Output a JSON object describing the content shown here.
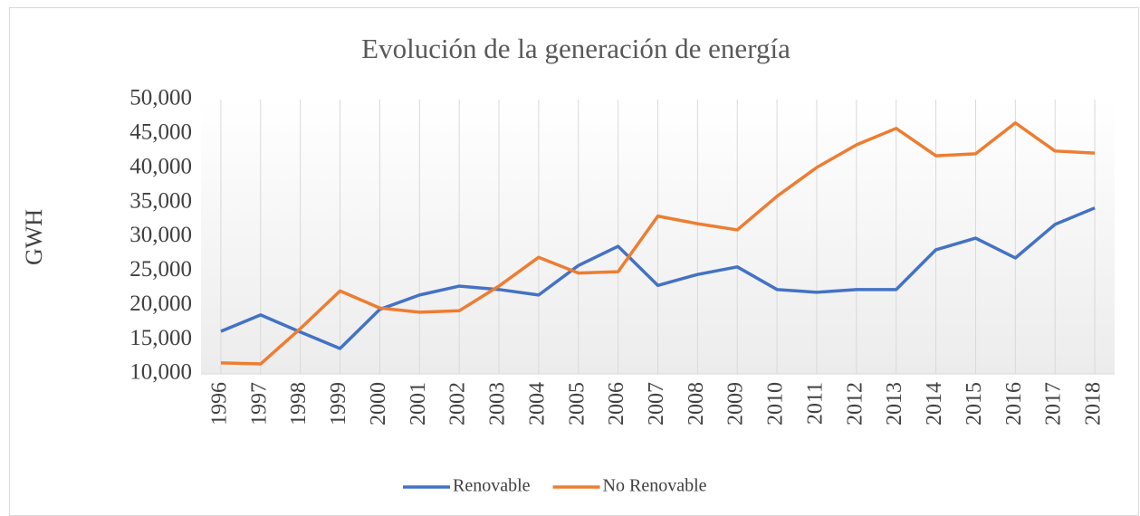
{
  "chart_data": {
    "type": "line",
    "title": "Evolución de la generación de energía",
    "y_label": "GWH",
    "categories": [
      "1996",
      "1997",
      "1998",
      "1999",
      "2000",
      "2001",
      "2002",
      "2003",
      "2004",
      "2005",
      "2006",
      "2007",
      "2008",
      "2009",
      "2010",
      "2011",
      "2012",
      "2013",
      "2014",
      "2015",
      "2016",
      "2017",
      "2018"
    ],
    "series": [
      {
        "name": "Renovable",
        "color": "#4472c4",
        "values": [
          16200,
          18600,
          16100,
          13700,
          19400,
          21500,
          22800,
          22300,
          21500,
          25800,
          28600,
          22900,
          24500,
          25600,
          22300,
          21900,
          22300,
          22300,
          28100,
          29800,
          26900,
          31800,
          34200
        ]
      },
      {
        "name": "No Renovable",
        "color": "#ed7d31",
        "values": [
          11600,
          11450,
          16600,
          22100,
          19600,
          19000,
          19200,
          22800,
          27000,
          24700,
          24900,
          33000,
          31900,
          31000,
          35900,
          40100,
          43400,
          45800,
          41800,
          42100,
          46600,
          42500,
          42200
        ]
      }
    ],
    "ylim": [
      10000,
      50000
    ],
    "yticks": [
      {
        "value": 10000,
        "label": "10,000"
      },
      {
        "value": 15000,
        "label": "15,000"
      },
      {
        "value": 20000,
        "label": "20,000"
      },
      {
        "value": 25000,
        "label": "25,000"
      },
      {
        "value": 30000,
        "label": "30,000"
      },
      {
        "value": 35000,
        "label": "35,000"
      },
      {
        "value": 40000,
        "label": "40,000"
      },
      {
        "value": 45000,
        "label": "45,000"
      },
      {
        "value": 50000,
        "label": "50,000"
      }
    ],
    "grid": false,
    "xgrid": true,
    "legend": "bottom"
  }
}
